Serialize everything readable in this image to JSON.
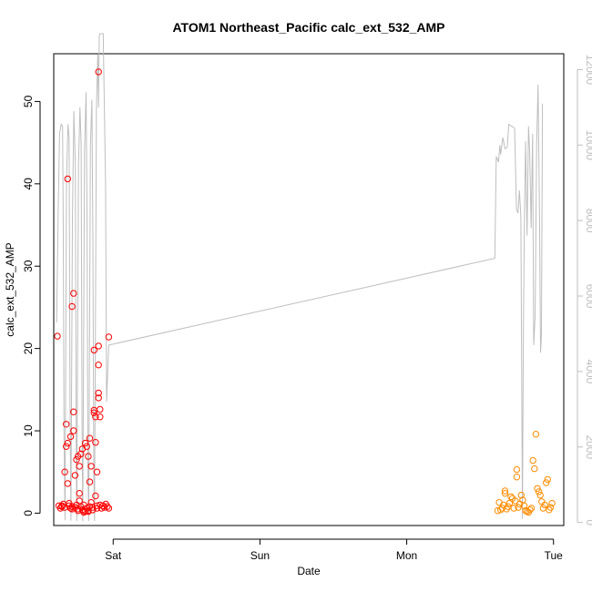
{
  "chart_data": {
    "type": "scatter",
    "title": "ATOM1 Northeast_Pacific calc_ext_532_AMP",
    "xlabel": "Date",
    "ylabel": "calc_ext_532_AMP",
    "x_ticks": [
      "Sat",
      "Sun",
      "Mon",
      "Tue"
    ],
    "x_tick_values": [
      1,
      2,
      3,
      4
    ],
    "xlim": [
      0.595,
      4.07
    ],
    "ylim": [
      -1.5,
      55.8
    ],
    "y_ticks": [
      0,
      10,
      20,
      30,
      40,
      50
    ],
    "y2lim": [
      -80,
      12420
    ],
    "y2_ticks": [
      0,
      2000,
      4000,
      6000,
      8000,
      10000,
      12000
    ],
    "grid": false,
    "colors": {
      "series1": "#ff0000",
      "series2": "#ff8c00",
      "line": "#bebebe",
      "axis": "#000000"
    },
    "series": [
      {
        "marker": "open-circle",
        "color": "#ff0000",
        "points": [
          [
            0.62,
            21.5
          ],
          [
            0.63,
            0.9
          ],
          [
            0.64,
            0.6
          ],
          [
            0.65,
            0.8
          ],
          [
            0.66,
            1.1
          ],
          [
            0.67,
            0.7
          ],
          [
            0.67,
            5.0
          ],
          [
            0.68,
            10.8
          ],
          [
            0.68,
            8.1
          ],
          [
            0.69,
            8.5
          ],
          [
            0.69,
            40.6
          ],
          [
            0.69,
            3.6
          ],
          [
            0.7,
            0.9
          ],
          [
            0.7,
            1.2
          ],
          [
            0.71,
            0.6
          ],
          [
            0.71,
            9.3
          ],
          [
            0.72,
            25.1
          ],
          [
            0.72,
            0.8
          ],
          [
            0.73,
            26.7
          ],
          [
            0.73,
            12.3
          ],
          [
            0.73,
            10.0
          ],
          [
            0.74,
            0.7
          ],
          [
            0.74,
            4.6
          ],
          [
            0.75,
            6.5
          ],
          [
            0.75,
            1.0
          ],
          [
            0.76,
            0.5
          ],
          [
            0.76,
            6.9
          ],
          [
            0.77,
            2.4
          ],
          [
            0.77,
            5.7
          ],
          [
            0.77,
            1.5
          ],
          [
            0.78,
            7.2
          ],
          [
            0.78,
            0.8
          ],
          [
            0.79,
            0.4
          ],
          [
            0.79,
            7.8
          ],
          [
            0.8,
            0.3
          ],
          [
            0.8,
            1.0
          ],
          [
            0.81,
            0.2
          ],
          [
            0.81,
            8.5
          ],
          [
            0.82,
            8.1
          ],
          [
            0.82,
            0.6
          ],
          [
            0.83,
            0.3
          ],
          [
            0.83,
            6.9
          ],
          [
            0.84,
            0.8
          ],
          [
            0.84,
            3.8
          ],
          [
            0.84,
            9.1
          ],
          [
            0.85,
            5.7
          ],
          [
            0.85,
            1.3
          ],
          [
            0.86,
            0.7
          ],
          [
            0.86,
            0.4
          ],
          [
            0.87,
            19.8
          ],
          [
            0.87,
            12.2
          ],
          [
            0.87,
            12.5
          ],
          [
            0.88,
            11.7
          ],
          [
            0.88,
            8.6
          ],
          [
            0.88,
            2.1
          ],
          [
            0.89,
            0.9
          ],
          [
            0.89,
            5.0
          ],
          [
            0.9,
            53.6
          ],
          [
            0.9,
            14.0
          ],
          [
            0.9,
            14.6
          ],
          [
            0.9,
            18.0
          ],
          [
            0.9,
            20.3
          ],
          [
            0.91,
            12.6
          ],
          [
            0.91,
            11.7
          ],
          [
            0.91,
            1.0
          ],
          [
            0.92,
            0.6
          ],
          [
            0.93,
            0.9
          ],
          [
            0.94,
            0.7
          ],
          [
            0.95,
            1.1
          ],
          [
            0.96,
            0.8
          ],
          [
            0.97,
            21.4
          ],
          [
            0.97,
            0.6
          ],
          [
            0.65,
            0.9
          ],
          [
            0.72,
            0.5
          ],
          [
            0.76,
            0.3
          ],
          [
            0.8,
            0.1
          ],
          [
            0.83,
            0.2
          ],
          [
            0.86,
            0.4
          ],
          [
            0.89,
            0.6
          ]
        ]
      },
      {
        "marker": "open-circle",
        "color": "#ff8c00",
        "points": [
          [
            3.62,
            0.3
          ],
          [
            3.63,
            1.3
          ],
          [
            3.64,
            0.4
          ],
          [
            3.65,
            0.6
          ],
          [
            3.66,
            1.0
          ],
          [
            3.67,
            2.7
          ],
          [
            3.67,
            2.4
          ],
          [
            3.68,
            0.5
          ],
          [
            3.69,
            0.8
          ],
          [
            3.7,
            1.2
          ],
          [
            3.71,
            2.0
          ],
          [
            3.72,
            1.8
          ],
          [
            3.73,
            0.6
          ],
          [
            3.74,
            1.5
          ],
          [
            3.75,
            5.3
          ],
          [
            3.75,
            4.4
          ],
          [
            3.76,
            0.7
          ],
          [
            3.77,
            1.1
          ],
          [
            3.78,
            2.2
          ],
          [
            3.79,
            1.6
          ],
          [
            3.8,
            0.9
          ],
          [
            3.81,
            0.3
          ],
          [
            3.82,
            0.2
          ],
          [
            3.83,
            0.1
          ],
          [
            3.84,
            0.4
          ],
          [
            3.85,
            0.6
          ],
          [
            3.86,
            6.4
          ],
          [
            3.87,
            5.4
          ],
          [
            3.88,
            9.6
          ],
          [
            3.89,
            3.0
          ],
          [
            3.9,
            2.6
          ],
          [
            3.91,
            2.2
          ],
          [
            3.92,
            1.4
          ],
          [
            3.93,
            0.6
          ],
          [
            3.94,
            1.0
          ],
          [
            3.95,
            3.7
          ],
          [
            3.96,
            4.1
          ],
          [
            3.97,
            0.4
          ],
          [
            3.98,
            0.7
          ],
          [
            3.99,
            1.2
          ]
        ]
      }
    ],
    "line_series": {
      "axis": "right",
      "color": "#bebebe",
      "points": [
        [
          0.615,
          5300
        ],
        [
          0.625,
          8100
        ],
        [
          0.635,
          10300
        ],
        [
          0.645,
          10550
        ],
        [
          0.655,
          10500
        ],
        [
          0.66,
          7700
        ],
        [
          0.665,
          2300
        ],
        [
          0.672,
          60
        ],
        [
          0.682,
          9000
        ],
        [
          0.692,
          10550
        ],
        [
          0.7,
          10200
        ],
        [
          0.706,
          3000
        ],
        [
          0.712,
          50
        ],
        [
          0.722,
          8000
        ],
        [
          0.732,
          10900
        ],
        [
          0.742,
          9500
        ],
        [
          0.748,
          2000
        ],
        [
          0.752,
          40
        ],
        [
          0.764,
          9500
        ],
        [
          0.774,
          11000
        ],
        [
          0.782,
          10000
        ],
        [
          0.788,
          2500
        ],
        [
          0.793,
          30
        ],
        [
          0.805,
          9800
        ],
        [
          0.815,
          11400
        ],
        [
          0.822,
          8000
        ],
        [
          0.828,
          1500
        ],
        [
          0.833,
          40
        ],
        [
          0.845,
          10000
        ],
        [
          0.855,
          11200
        ],
        [
          0.862,
          7500
        ],
        [
          0.868,
          1200
        ],
        [
          0.873,
          40
        ],
        [
          0.886,
          11000
        ],
        [
          0.895,
          12400
        ],
        [
          0.9,
          11000
        ],
        [
          0.905,
          12900
        ],
        [
          0.91,
          12950
        ],
        [
          0.932,
          12950
        ],
        [
          0.948,
          9000
        ],
        [
          0.955,
          3200
        ],
        [
          0.97,
          4700
        ],
        [
          3.6,
          7000
        ],
        [
          3.61,
          9700
        ],
        [
          3.625,
          9550
        ],
        [
          3.635,
          10000
        ],
        [
          3.64,
          9750
        ],
        [
          3.655,
          10200
        ],
        [
          3.67,
          9900
        ],
        [
          3.685,
          9950
        ],
        [
          3.695,
          10550
        ],
        [
          3.715,
          10500
        ],
        [
          3.735,
          10450
        ],
        [
          3.748,
          8300
        ],
        [
          3.758,
          8200
        ],
        [
          3.768,
          8800
        ],
        [
          3.778,
          8100
        ],
        [
          3.788,
          100
        ],
        [
          3.795,
          5200
        ],
        [
          3.802,
          8000
        ],
        [
          3.81,
          10100
        ],
        [
          3.82,
          7600
        ],
        [
          3.83,
          10500
        ],
        [
          3.838,
          9800
        ],
        [
          3.848,
          7800
        ],
        [
          3.858,
          10300
        ],
        [
          3.865,
          4700
        ],
        [
          3.875,
          5500
        ],
        [
          3.885,
          10000
        ],
        [
          3.895,
          11600
        ],
        [
          3.905,
          8000
        ],
        [
          3.912,
          4500
        ],
        [
          3.918,
          5000
        ],
        [
          3.925,
          11100
        ]
      ]
    }
  }
}
